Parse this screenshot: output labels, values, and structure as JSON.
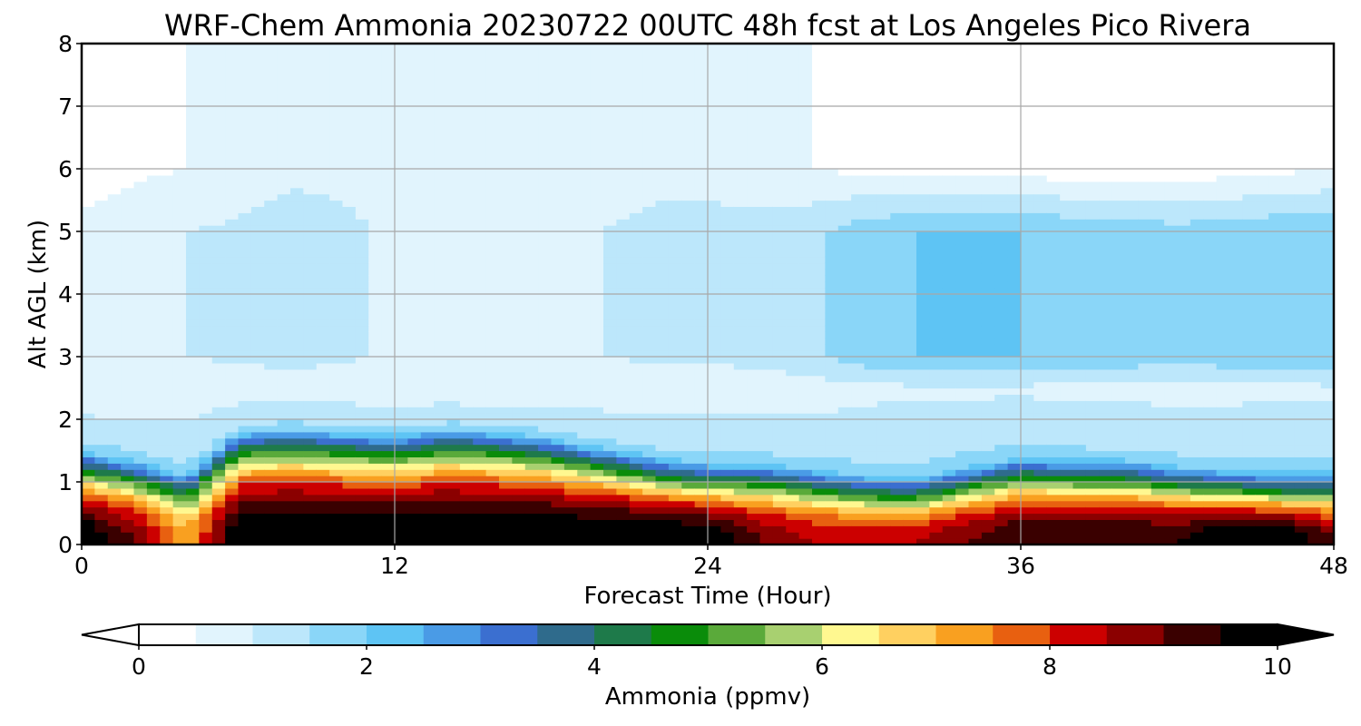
{
  "chart_data": {
    "type": "heatmap",
    "title": "WRF-Chem Ammonia  20230722 00UTC 48h fcst at Los Angeles Pico Rivera",
    "xlabel": "Forecast Time (Hour)",
    "ylabel": "Alt AGL (km)",
    "xlim": [
      0,
      48
    ],
    "ylim": [
      0,
      8
    ],
    "x_ticks": [
      0,
      12,
      24,
      36,
      48
    ],
    "y_ticks": [
      0,
      1,
      2,
      3,
      4,
      5,
      6,
      7,
      8
    ],
    "grid": true,
    "colorbar": {
      "label": "Ammonia  (ppmv)",
      "range": [
        0,
        10
      ],
      "ticks": [
        0,
        2,
        4,
        6,
        8,
        10
      ],
      "extend": "both",
      "colors": [
        "#ffffff",
        "#e1f4fd",
        "#bce7fb",
        "#8ad6f8",
        "#5ec4f4",
        "#4a9be6",
        "#3b6fd0",
        "#2f6b8c",
        "#1e7a4a",
        "#0a8c0a",
        "#5aaa3a",
        "#a8d070",
        "#fff890",
        "#ffd060",
        "#f9a020",
        "#e86010",
        "#cc0000",
        "#8b0000",
        "#3a0000",
        "#000000"
      ]
    },
    "x": [
      0,
      2,
      4,
      6,
      8,
      10,
      12,
      14,
      16,
      18,
      20,
      22,
      24,
      26,
      28,
      30,
      32,
      34,
      36,
      38,
      40,
      42,
      44,
      46,
      48
    ],
    "y": [
      0,
      0.25,
      0.5,
      0.75,
      1,
      1.25,
      1.5,
      1.75,
      2,
      2.5,
      3,
      3.5,
      4,
      4.5,
      5,
      5.5,
      6,
      6.5,
      7,
      7.5,
      8
    ],
    "boundary_layer_top_km": [
      1.2,
      1.05,
      0.8,
      1.5,
      1.55,
      1.5,
      1.45,
      1.55,
      1.5,
      1.4,
      1.25,
      1.1,
      1.0,
      1.0,
      0.9,
      0.8,
      0.78,
      0.95,
      1.1,
      1.05,
      1.05,
      0.95,
      0.9,
      0.85,
      0.85
    ],
    "surface_max_ppmv": [
      10,
      9,
      7,
      10,
      10,
      10,
      10,
      10,
      10,
      10,
      10,
      10,
      10,
      9,
      8.5,
      8.5,
      8.5,
      9,
      9.5,
      9.5,
      9.5,
      9.5,
      10,
      10,
      9
    ],
    "upper_air_ppmv_3to5km": [
      0.6,
      0.8,
      1.0,
      1.1,
      1.2,
      1.1,
      0.9,
      0.9,
      0.9,
      0.9,
      1.0,
      1.1,
      1.1,
      1.2,
      1.4,
      1.8,
      2.0,
      2.0,
      2.0,
      1.9,
      1.8,
      1.7,
      1.8,
      1.9,
      2.0
    ],
    "upper_air_ppmv_6to8km": [
      0.3,
      0.4,
      0.5,
      0.7,
      0.9,
      0.9,
      0.8,
      0.8,
      0.9,
      0.9,
      0.8,
      0.9,
      0.9,
      0.7,
      0.5,
      0.4,
      0.3,
      0.3,
      0.3,
      0.2,
      0.2,
      0.2,
      0.3,
      0.4,
      0.5
    ]
  }
}
